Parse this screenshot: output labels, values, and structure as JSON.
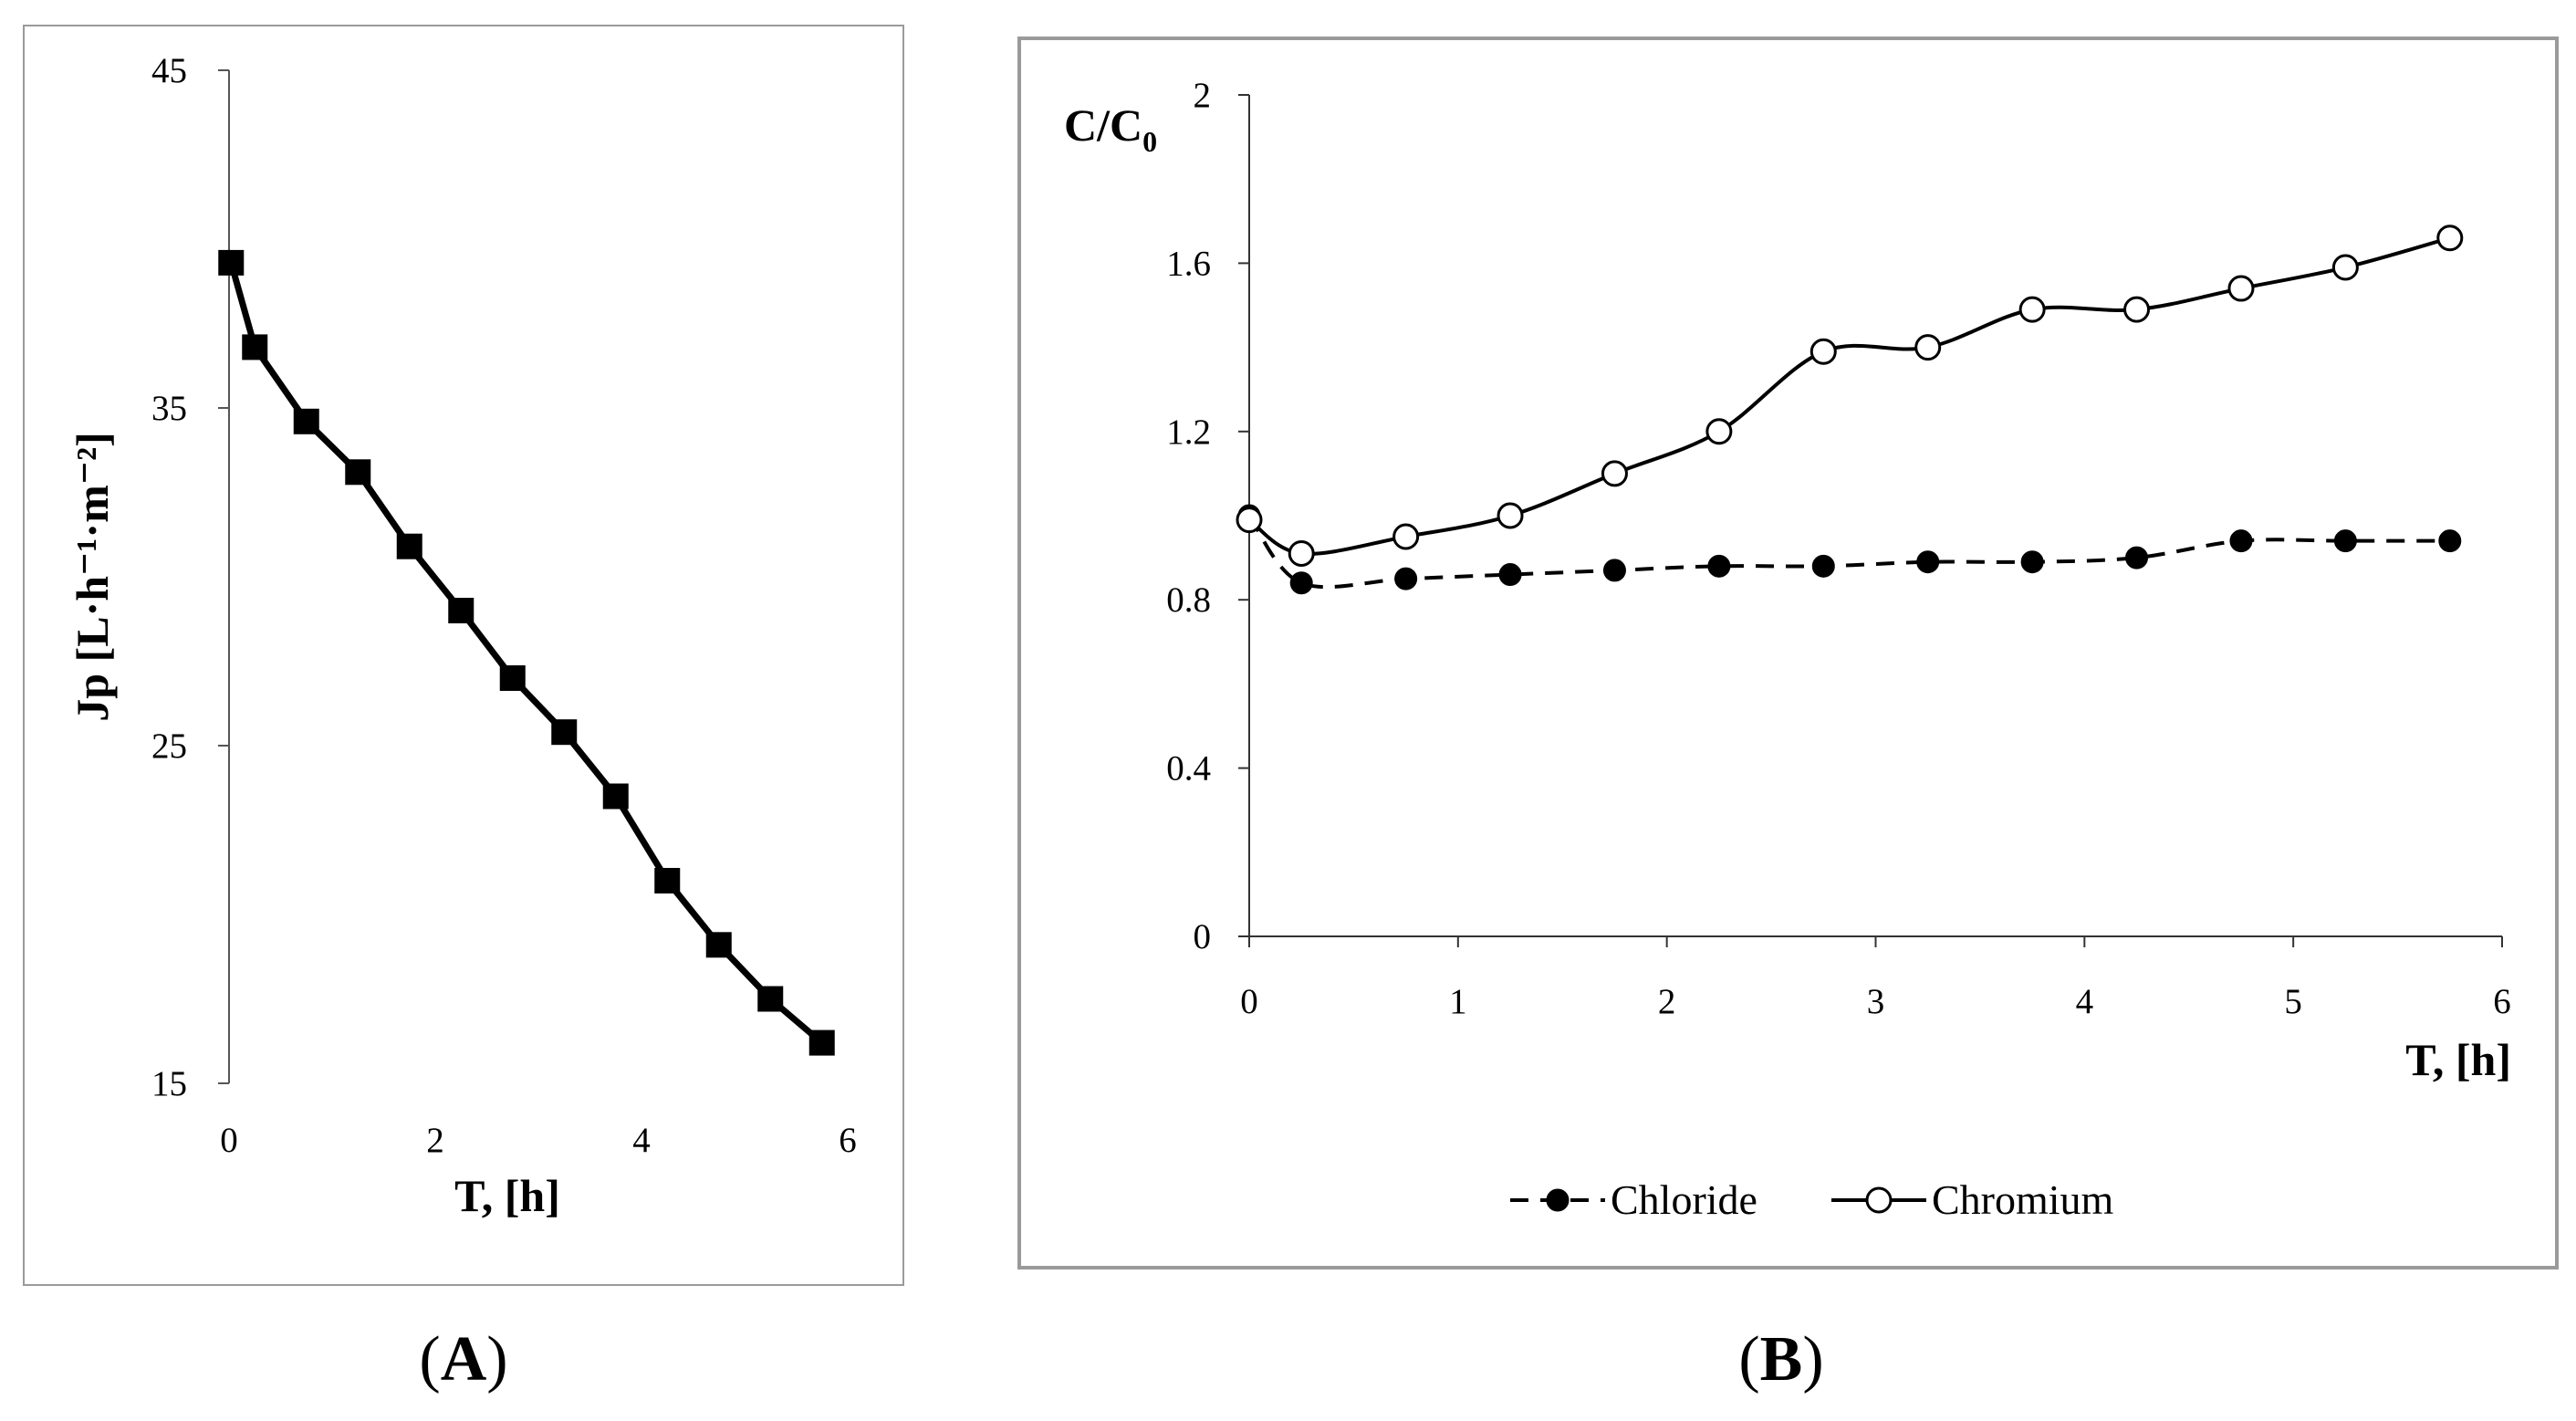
{
  "chart_data": [
    {
      "panel": "A",
      "type": "line",
      "xlabel": "T, [h]",
      "ylabel": "Jp [L·h⁻¹·m⁻²]",
      "xlim": [
        0,
        6
      ],
      "ylim": [
        15,
        45
      ],
      "xticks": [
        0,
        2,
        4,
        6
      ],
      "yticks": [
        15,
        25,
        35,
        45
      ],
      "series": [
        {
          "name": "Jp",
          "marker": "filled-square",
          "line": "solid",
          "x": [
            0.02,
            0.25,
            0.75,
            1.25,
            1.75,
            2.25,
            2.75,
            3.25,
            3.75,
            4.25,
            4.75,
            5.25,
            5.75
          ],
          "y": [
            39.3,
            36.8,
            34.6,
            33.1,
            30.9,
            29.0,
            27.0,
            25.4,
            23.5,
            21.0,
            19.1,
            17.5,
            16.2
          ]
        }
      ]
    },
    {
      "panel": "B",
      "type": "line",
      "xlabel": "T, [h]",
      "ylabel_main": "C/C",
      "ylabel_sub": "0",
      "xlim": [
        0,
        6
      ],
      "ylim": [
        0,
        2
      ],
      "xticks": [
        "0",
        "1",
        "2",
        "3",
        "4",
        "5",
        "6"
      ],
      "yticks": [
        "0",
        "0.4",
        "0.8",
        "1.2",
        "1.6",
        "2"
      ],
      "legend_position": "bottom",
      "series": [
        {
          "name": "Chloride",
          "marker": "filled-circle",
          "line": "dashed",
          "x": [
            0,
            0.25,
            0.75,
            1.25,
            1.75,
            2.25,
            2.75,
            3.25,
            3.75,
            4.25,
            4.75,
            5.25,
            5.75
          ],
          "y": [
            1.0,
            0.84,
            0.85,
            0.86,
            0.87,
            0.88,
            0.88,
            0.89,
            0.89,
            0.9,
            0.94,
            0.94,
            0.94
          ]
        },
        {
          "name": "Chromium",
          "marker": "open-circle",
          "line": "solid",
          "x": [
            0,
            0.25,
            0.75,
            1.25,
            1.75,
            2.25,
            2.75,
            3.25,
            3.75,
            4.25,
            4.75,
            5.25,
            5.75
          ],
          "y": [
            0.99,
            0.91,
            0.95,
            1.0,
            1.1,
            1.2,
            1.39,
            1.4,
            1.49,
            1.49,
            1.54,
            1.59,
            1.66
          ]
        }
      ]
    }
  ]
}
